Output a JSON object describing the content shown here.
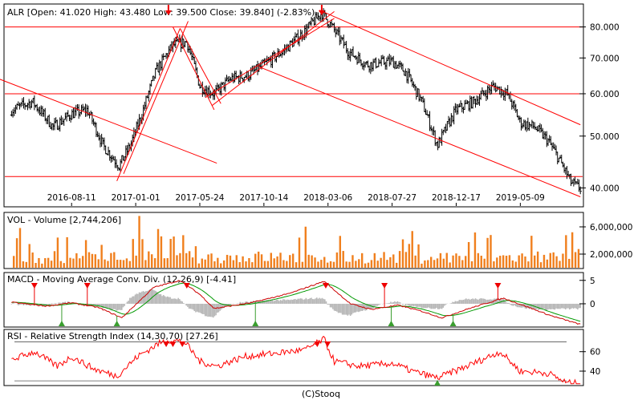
{
  "source": "(C)Stooq",
  "colors": {
    "up": "#000000",
    "trend": "#ff0000",
    "volume": "#f07f1d",
    "macd": "#cc0000",
    "signal": "#009900",
    "histogram": "#b8b8b8",
    "rsi": "#ff0000",
    "marker_up": "#3a9e2f",
    "marker_down": "#ee0000",
    "grid": "#000000"
  },
  "chart_data": [
    {
      "type": "ohlc",
      "title": "ALR [Open: 41.020  High: 43.480  Low: 39.500  Close: 39.840]  (-2.83%)",
      "x_ticks": [
        "2016-08-11",
        "2017-01-01",
        "2017-05-24",
        "2017-10-14",
        "2018-03-06",
        "2018-07-27",
        "2018-12-17",
        "2019-05-09"
      ],
      "y_ticks": [
        "80.000",
        "70.000",
        "60.000",
        "50.000",
        "40.000"
      ],
      "y_scale": "log",
      "ylim": [
        37,
        88
      ],
      "horizontal_levels": [
        80,
        60,
        42
      ],
      "trend_lines": [
        {
          "from": [
            "2016-03",
            64.0
          ],
          "to": [
            "2017-07",
            44.5
          ]
        },
        {
          "from": [
            "2016-11-20",
            41.2
          ],
          "to": [
            "2017-04-10",
            79.5
          ]
        },
        {
          "from": [
            "2016-12-05",
            42.5
          ],
          "to": [
            "2017-04-28",
            82.0
          ]
        },
        {
          "from": [
            "2017-03-25",
            80.0
          ],
          "to": [
            "2017-06-25",
            56.0
          ]
        },
        {
          "from": [
            "2017-04-10",
            79.5
          ],
          "to": [
            "2017-07-10",
            57.5
          ]
        },
        {
          "from": [
            "2017-06-05",
            59.0
          ],
          "to": [
            "2018-03-20",
            83.0
          ]
        },
        {
          "from": [
            "2017-06-20",
            57.0
          ],
          "to": [
            "2018-03-20",
            85.5
          ]
        },
        {
          "from": [
            "2018-02-15",
            86.0
          ],
          "to": [
            "2019-09-20",
            52.5
          ]
        },
        {
          "from": [
            "2017-10-01",
            67.5
          ],
          "to": [
            "2019-09-20",
            38.5
          ]
        }
      ],
      "arrows": [
        "2017-03-15",
        "2018-02-20"
      ],
      "series_key_points": [
        [
          "2016-04-01",
          56
        ],
        [
          "2016-05-15",
          58
        ],
        [
          "2016-07-01",
          52
        ],
        [
          "2016-08-11",
          55
        ],
        [
          "2016-09-15",
          56
        ],
        [
          "2016-10-20",
          48
        ],
        [
          "2016-11-25",
          44
        ],
        [
          "2016-12-20",
          48
        ],
        [
          "2017-01-15",
          55
        ],
        [
          "2017-02-15",
          66
        ],
        [
          "2017-03-25",
          74
        ],
        [
          "2017-04-25",
          75
        ],
        [
          "2017-05-24",
          62
        ],
        [
          "2017-06-25",
          60
        ],
        [
          "2017-08-01",
          64
        ],
        [
          "2017-09-10",
          65
        ],
        [
          "2017-10-14",
          68
        ],
        [
          "2017-11-25",
          72
        ],
        [
          "2018-01-10",
          78
        ],
        [
          "2018-02-20",
          85
        ],
        [
          "2018-03-15",
          80
        ],
        [
          "2018-04-20",
          72
        ],
        [
          "2018-06-01",
          68
        ],
        [
          "2018-07-27",
          69
        ],
        [
          "2018-08-25",
          66
        ],
        [
          "2018-10-01",
          58
        ],
        [
          "2018-11-05",
          48
        ],
        [
          "2018-12-17",
          56
        ],
        [
          "2019-01-25",
          58
        ],
        [
          "2019-03-10",
          62
        ],
        [
          "2019-04-10",
          60
        ],
        [
          "2019-05-09",
          53
        ],
        [
          "2019-06-10",
          52
        ],
        [
          "2019-07-10",
          49
        ],
        [
          "2019-08-05",
          45
        ],
        [
          "2019-08-30",
          41
        ],
        [
          "2019-09-20",
          39.84
        ]
      ]
    },
    {
      "type": "bar",
      "title": "VOL - Volume [2,744,206]",
      "y_ticks": [
        "6,000,000",
        "2,000,000"
      ],
      "ylim": [
        0,
        8000000
      ],
      "last_value": 2744206,
      "peak": {
        "x": "2017-01-10",
        "value": 7600000
      }
    },
    {
      "type": "line",
      "title": "MACD - Moving Average Conv. Div. (12,26,9) [-4.41]",
      "y_ticks": [
        "5",
        "0"
      ],
      "ylim": [
        -4.8,
        6.5
      ],
      "last_value": -4.41,
      "series_key_points": [
        [
          "2016-04-01",
          0.3
        ],
        [
          "2016-06-15",
          -0.5
        ],
        [
          "2016-08-11",
          0.2
        ],
        [
          "2016-10-10",
          -0.8
        ],
        [
          "2016-12-01",
          -3.0
        ],
        [
          "2017-02-10",
          3.5
        ],
        [
          "2017-04-10",
          5.0
        ],
        [
          "2017-05-24",
          2.0
        ],
        [
          "2017-06-25",
          -1.0
        ],
        [
          "2017-09-15",
          0.2
        ],
        [
          "2017-12-10",
          2.2
        ],
        [
          "2018-02-25",
          4.8
        ],
        [
          "2018-04-25",
          0.0
        ],
        [
          "2018-06-10",
          -1.2
        ],
        [
          "2018-08-10",
          -0.3
        ],
        [
          "2018-10-01",
          -1.6
        ],
        [
          "2018-11-15",
          -3.0
        ],
        [
          "2019-01-15",
          -1.0
        ],
        [
          "2019-04-01",
          1.2
        ],
        [
          "2019-05-20",
          -0.5
        ],
        [
          "2019-07-15",
          -2.5
        ],
        [
          "2019-09-20",
          -4.41
        ]
      ],
      "sell_markers": [
        "2016-05-20",
        "2016-09-15",
        "2017-04-25",
        "2018-03-01",
        "2018-07-10",
        "2019-03-20"
      ],
      "buy_markers": [
        "2016-07-20",
        "2016-11-20",
        "2017-09-25",
        "2018-07-25",
        "2018-12-10"
      ]
    },
    {
      "type": "line",
      "title": "RSI - Relative Strength Index (14,30,70) [27.26]",
      "y_ticks": [
        "60",
        "40"
      ],
      "ylim": [
        26,
        82
      ],
      "levels": [
        70,
        30
      ],
      "last_value": 27.26,
      "series_key_points": [
        [
          "2016-04-01",
          52
        ],
        [
          "2016-05-20",
          60
        ],
        [
          "2016-07-10",
          45
        ],
        [
          "2016-08-11",
          55
        ],
        [
          "2016-10-01",
          42
        ],
        [
          "2016-11-20",
          35
        ],
        [
          "2017-01-05",
          55
        ],
        [
          "2017-02-20",
          68
        ],
        [
          "2017-03-15",
          72
        ],
        [
          "2017-04-20",
          70
        ],
        [
          "2017-05-24",
          50
        ],
        [
          "2017-07-01",
          45
        ],
        [
          "2017-09-01",
          55
        ],
        [
          "2017-11-01",
          58
        ],
        [
          "2018-01-15",
          62
        ],
        [
          "2018-02-25",
          73
        ],
        [
          "2018-03-20",
          50
        ],
        [
          "2018-05-15",
          45
        ],
        [
          "2018-07-27",
          48
        ],
        [
          "2018-09-10",
          40
        ],
        [
          "2018-11-05",
          33
        ],
        [
          "2019-01-10",
          45
        ],
        [
          "2019-03-25",
          60
        ],
        [
          "2019-05-09",
          40
        ],
        [
          "2019-07-10",
          38
        ],
        [
          "2019-08-20",
          28
        ],
        [
          "2019-09-20",
          27.26
        ]
      ],
      "sell_markers": [
        "2017-03-10",
        "2017-03-25",
        "2017-04-15",
        "2018-02-10",
        "2018-03-05"
      ],
      "buy_markers": [
        "2018-11-05"
      ]
    }
  ]
}
